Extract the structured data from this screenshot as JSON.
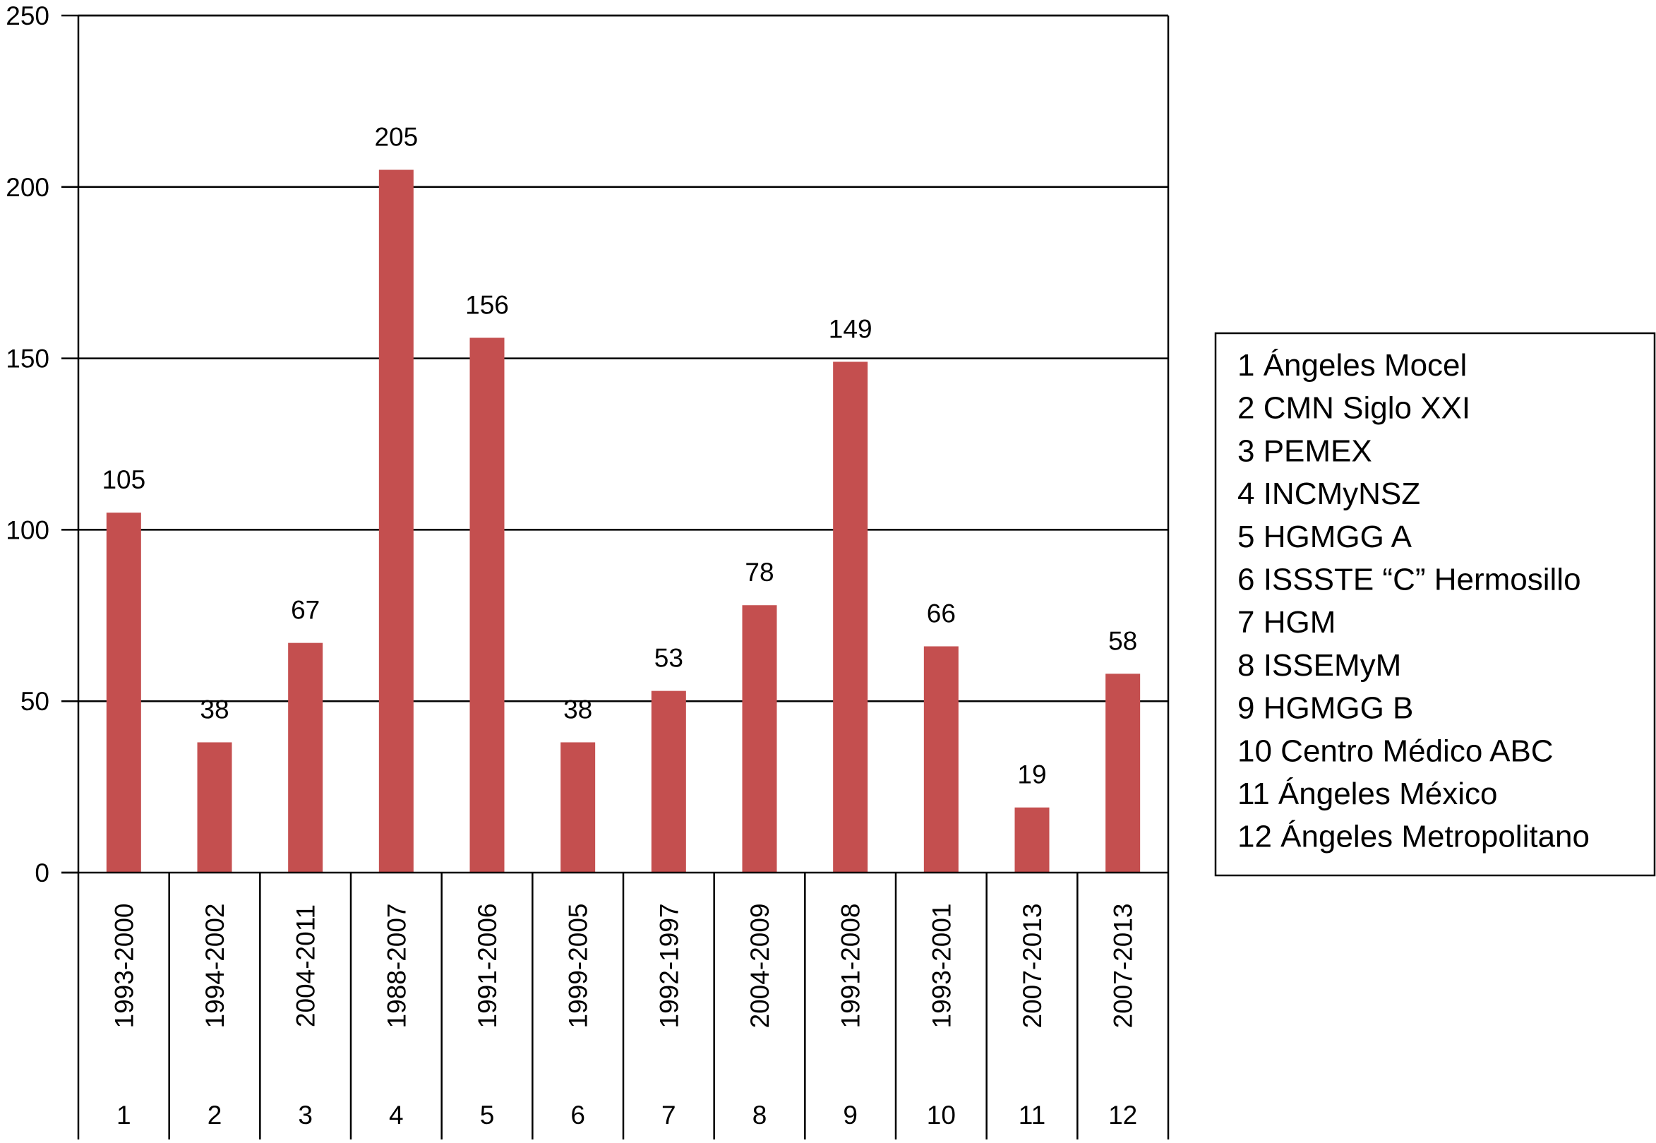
{
  "chart_data": {
    "type": "bar",
    "title": "",
    "xlabel": "",
    "ylabel": "",
    "ylim": [
      0,
      250
    ],
    "yticks": [
      0,
      50,
      100,
      150,
      200,
      250
    ],
    "grid": true,
    "legend_position": "right",
    "categories": [
      "1",
      "2",
      "3",
      "4",
      "5",
      "6",
      "7",
      "8",
      "9",
      "10",
      "11",
      "12"
    ],
    "periods": [
      "1993-2000",
      "1994-2002",
      "2004-2011",
      "1988-2007",
      "1991-2006",
      "1999-2005",
      "1992-1997",
      "2004-2009",
      "1991-2008",
      "1993-2001",
      "2007-2013",
      "2007-2013"
    ],
    "values": [
      105,
      38,
      67,
      205,
      156,
      38,
      53,
      78,
      149,
      66,
      19,
      58
    ],
    "value_labels": [
      "105",
      "38",
      "67",
      "205",
      "156",
      "38",
      "53",
      "78",
      "149",
      "66",
      "19",
      "58"
    ],
    "legend": [
      "1 Ángeles Mocel",
      "2 CMN Siglo XXI",
      "3 PEMEX",
      "4 INCMyNSZ",
      "5 HGMGG A",
      "6 ISSSTE “C” Hermosillo",
      "7 HGM",
      "8 ISSEMyM",
      "9 HGMGG B",
      "10 Centro Médico ABC",
      "11 Ángeles México",
      "12 Ángeles Metropolitano"
    ],
    "colors": {
      "bar": "#c44f4f",
      "axis": "#000000",
      "grid": "#000000",
      "text": "#000000"
    }
  }
}
